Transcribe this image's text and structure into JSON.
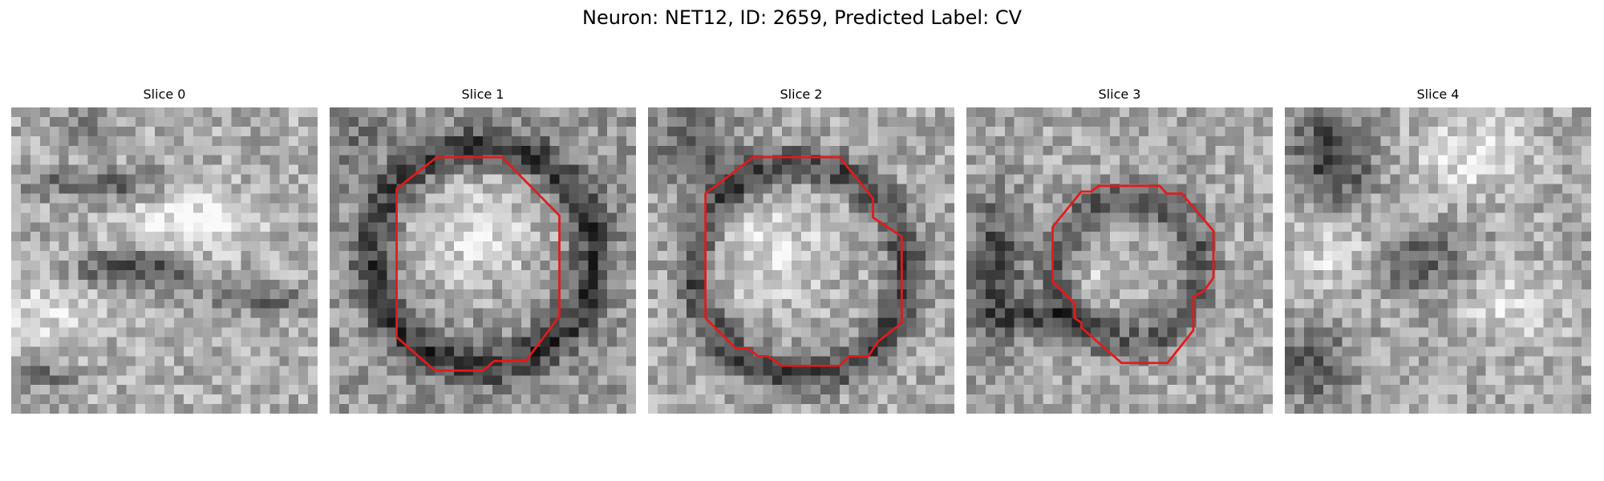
{
  "figure": {
    "title": "Neuron: NET12, ID: 2659, Predicted Label: CV"
  },
  "panels": [
    {
      "title": "Slice 0",
      "has_contour": false,
      "seed": 11,
      "pattern": "slice0"
    },
    {
      "title": "Slice 1",
      "has_contour": true,
      "seed": 23,
      "pattern": "slice1"
    },
    {
      "title": "Slice 2",
      "has_contour": true,
      "seed": 37,
      "pattern": "slice2"
    },
    {
      "title": "Slice 3",
      "has_contour": true,
      "seed": 53,
      "pattern": "slice3"
    },
    {
      "title": "Slice 4",
      "has_contour": false,
      "seed": 71,
      "pattern": "slice4"
    }
  ],
  "colors": {
    "contour": "#e31a1c",
    "background": "#ffffff"
  }
}
